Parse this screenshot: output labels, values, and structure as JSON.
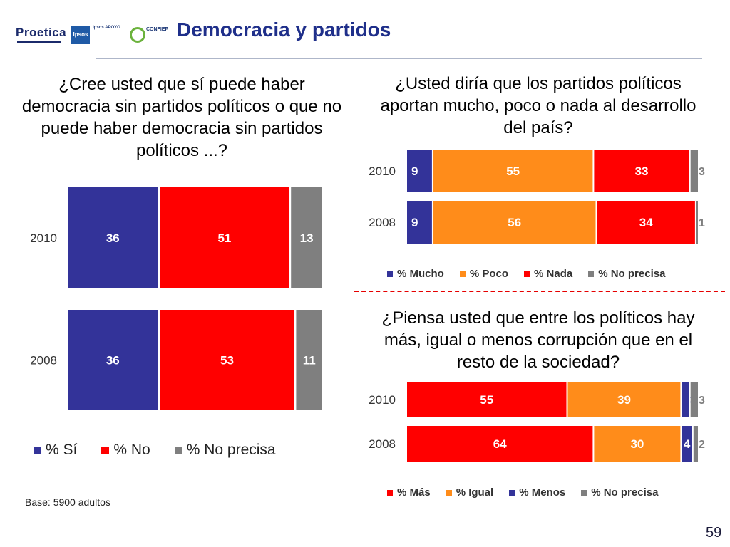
{
  "header": {
    "title": "Democracia y partidos",
    "logos": {
      "proetica": "Proetica",
      "ipsos": "Ipsos",
      "apoyo": "Ipsos APOYO",
      "confiep": "CONFIEP"
    }
  },
  "questions": {
    "q1": "¿Cree usted que sí puede haber democracia sin partidos políticos o que no puede haber democracia sin partidos políticos ...?",
    "q2": "¿Usted diría que los partidos políticos aportan mucho, poco o nada al desarrollo del país?",
    "q3": "¿Piensa usted que entre los políticos hay más, igual o menos corrupción que en el resto de la sociedad?"
  },
  "colors": {
    "blue": "#333399",
    "red": "#ff0000",
    "orange": "#ff8c1a",
    "gray": "#7f7f7f"
  },
  "chart_data": [
    {
      "id": "chart1",
      "type": "bar",
      "stacked": true,
      "orientation": "horizontal",
      "categories": [
        "2010",
        "2008"
      ],
      "series": [
        {
          "name": "% Sí",
          "color": "#333399",
          "values": [
            36,
            36
          ]
        },
        {
          "name": "% No",
          "color": "#ff0000",
          "values": [
            51,
            53
          ]
        },
        {
          "name": "% No precisa",
          "color": "#7f7f7f",
          "values": [
            13,
            11
          ]
        }
      ],
      "xlim": [
        0,
        100
      ],
      "legend": "bottom"
    },
    {
      "id": "chart2",
      "type": "bar",
      "stacked": true,
      "orientation": "horizontal",
      "categories": [
        "2010",
        "2008"
      ],
      "series": [
        {
          "name": "% Mucho",
          "color": "#333399",
          "values": [
            9,
            9
          ]
        },
        {
          "name": "% Poco",
          "color": "#ff8c1a",
          "values": [
            55,
            56
          ]
        },
        {
          "name": "% Nada",
          "color": "#ff0000",
          "values": [
            33,
            34
          ]
        },
        {
          "name": "% No precisa",
          "color": "#7f7f7f",
          "values": [
            3,
            1
          ]
        }
      ],
      "xlim": [
        0,
        100
      ],
      "legend": "bottom"
    },
    {
      "id": "chart3",
      "type": "bar",
      "stacked": true,
      "orientation": "horizontal",
      "categories": [
        "2010",
        "2008"
      ],
      "series": [
        {
          "name": "% Más",
          "color": "#ff0000",
          "values": [
            55,
            64
          ]
        },
        {
          "name": "% Igual",
          "color": "#ff8c1a",
          "values": [
            39,
            30
          ]
        },
        {
          "name": "% Menos",
          "color": "#333399",
          "values": [
            3,
            4
          ]
        },
        {
          "name": "% No precisa",
          "color": "#7f7f7f",
          "values": [
            3,
            2
          ]
        }
      ],
      "xlim": [
        0,
        100
      ],
      "legend": "bottom"
    }
  ],
  "footer": {
    "base": "Base: 5900 adultos",
    "page": "59"
  }
}
